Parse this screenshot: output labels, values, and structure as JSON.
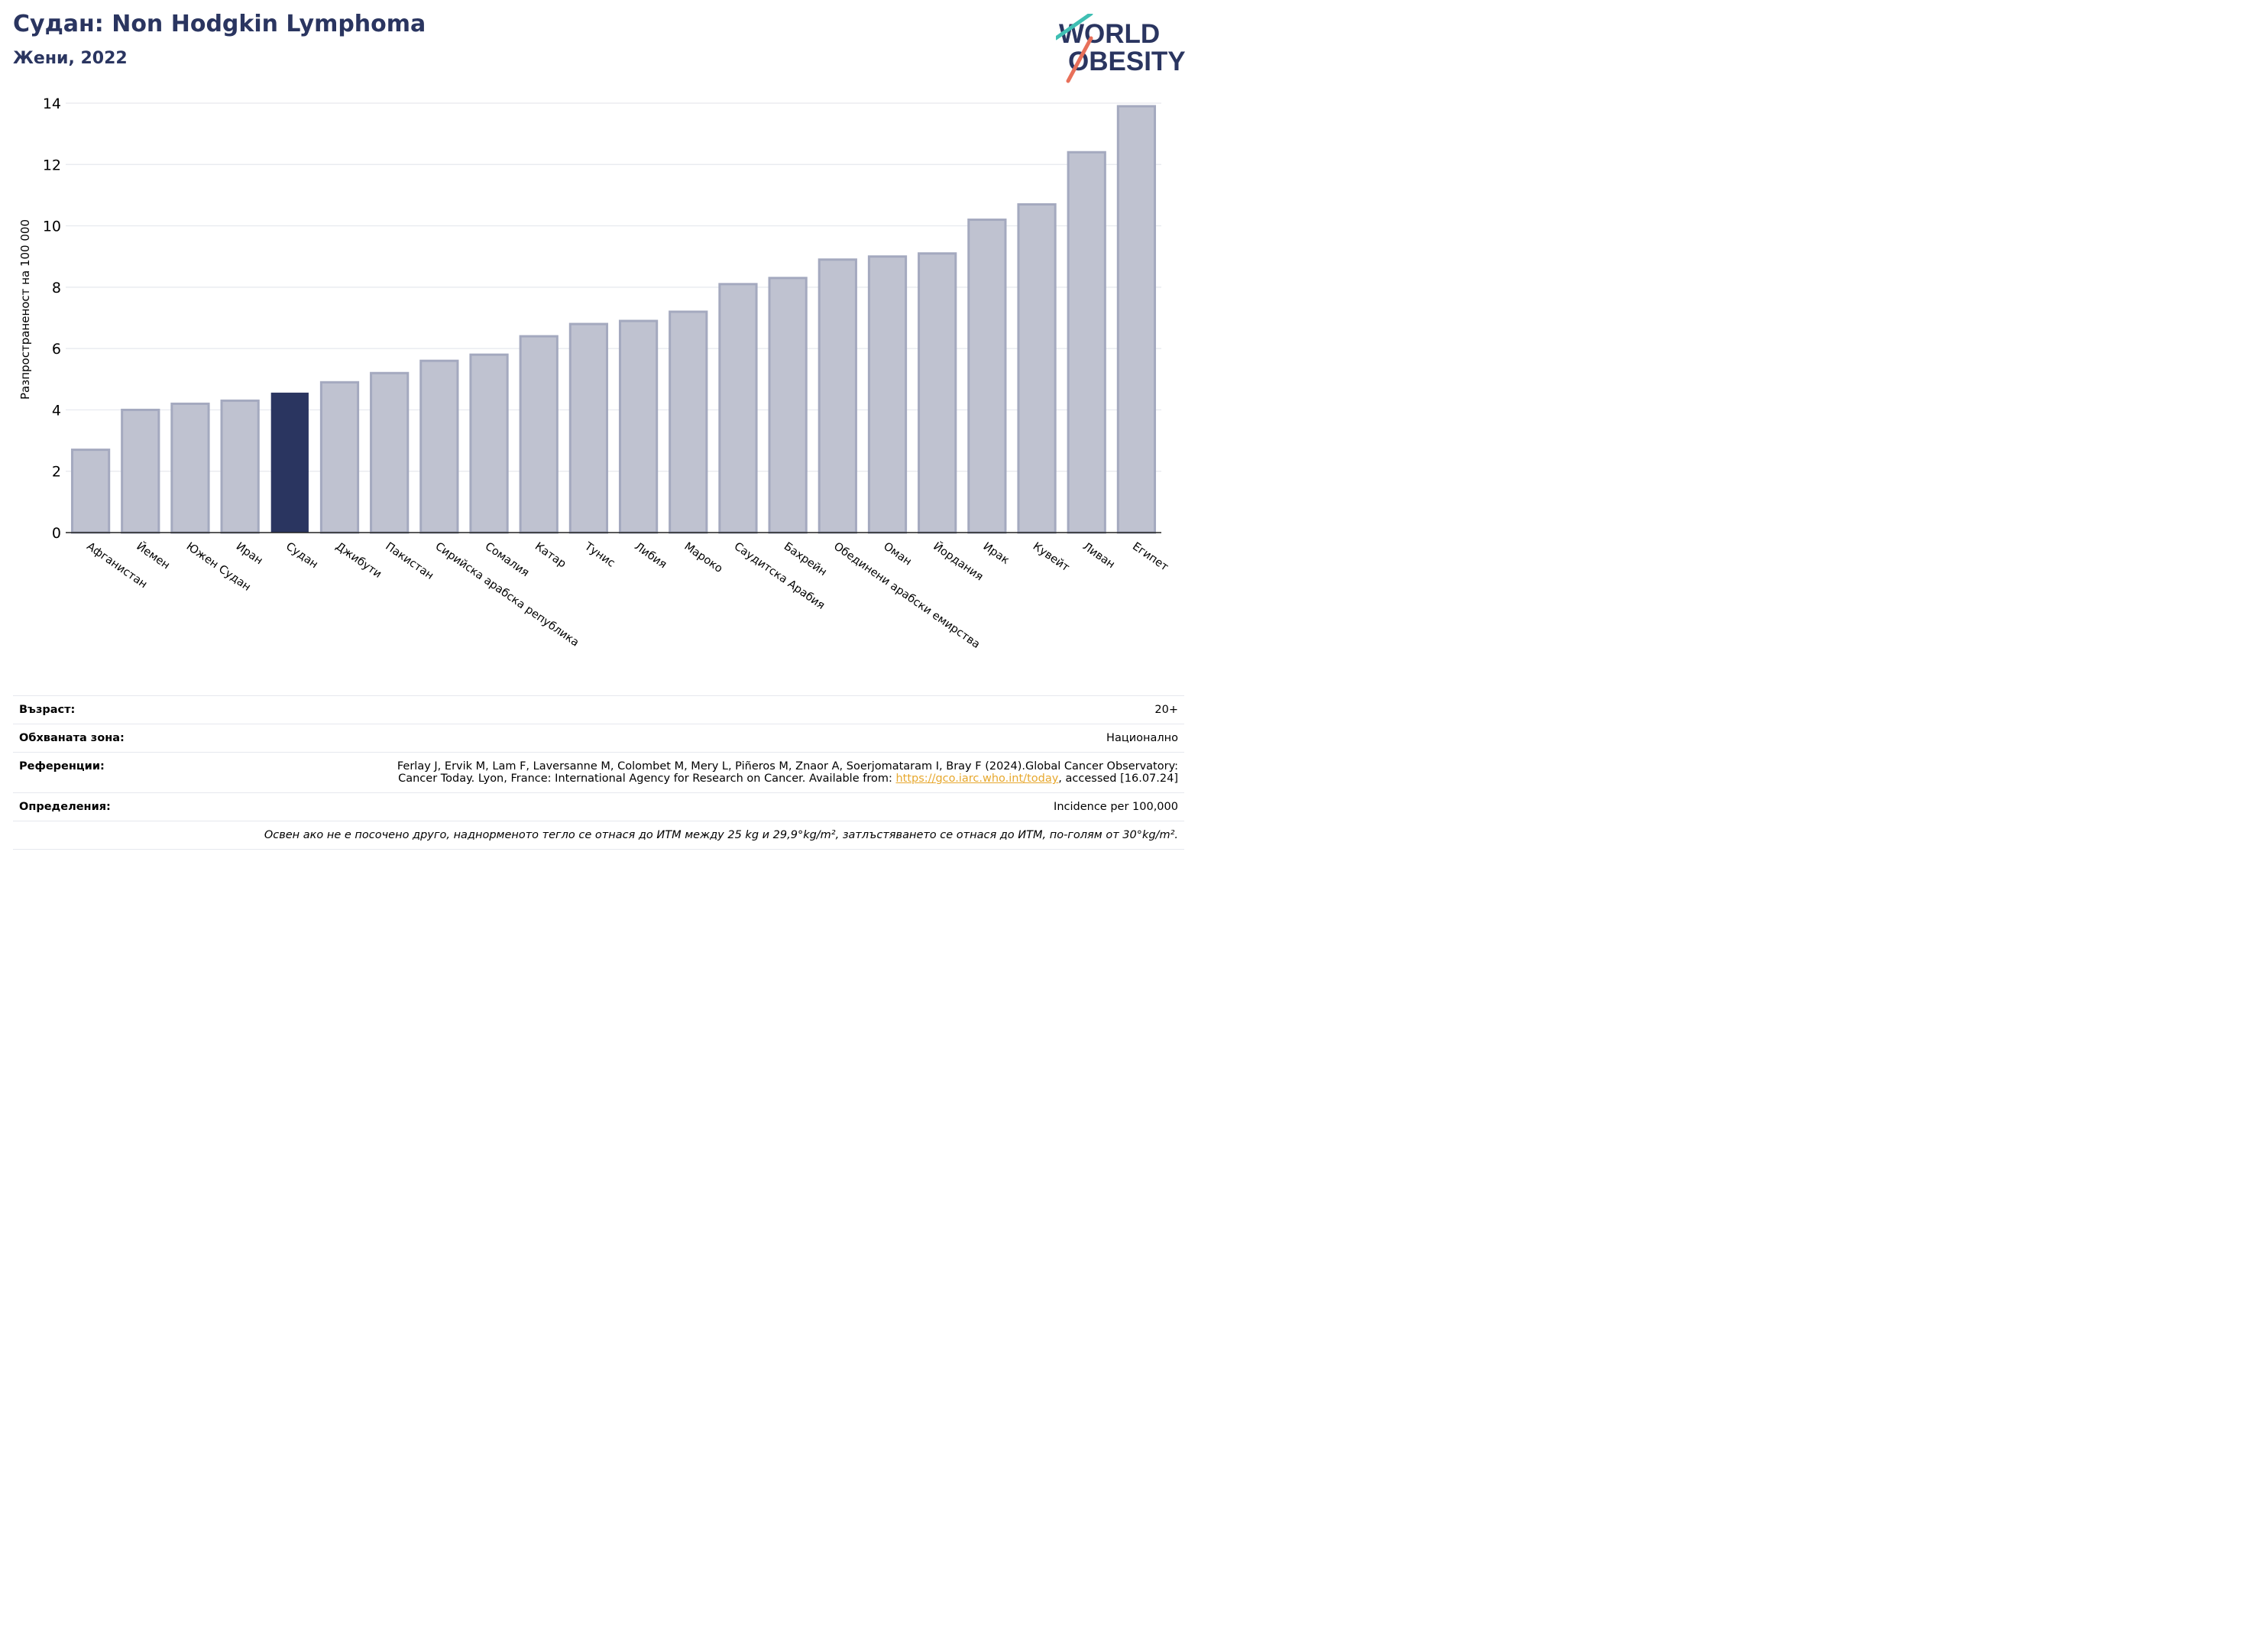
{
  "header": {
    "title": "Судан: Non Hodgkin Lymphoma",
    "subtitle": "Жени, 2022"
  },
  "logo": {
    "line1": "WORLD",
    "line2": "OBESITY"
  },
  "chart_data": {
    "type": "bar",
    "ylabel": "Разпространеност  на 100 000",
    "ylim": [
      0,
      14
    ],
    "yticks": [
      0,
      2,
      4,
      6,
      8,
      10,
      12,
      14
    ],
    "grid": true,
    "highlight": "Судан",
    "colors": {
      "bar": "#bfc2d0",
      "bar_edge": "#a4a9bf",
      "highlight": "#2a3560",
      "grid": "#e6e8ee"
    },
    "categories": [
      "Афганистан",
      "Йемен",
      "Южен Судан",
      "Иран",
      "Судан",
      "Джибути",
      "Пакистан",
      "Сирийска арабска република",
      "Сомалия",
      "Катар",
      "Тунис",
      "Либия",
      "Мароко",
      "Саудитска Арабия",
      "Бахрейн",
      "Обединени арабски емирства",
      "Оман",
      "Йордания",
      "Ирак",
      "Кувейт",
      "Ливан",
      "Египет"
    ],
    "values": [
      2.7,
      4.0,
      4.2,
      4.3,
      4.55,
      4.9,
      5.2,
      5.6,
      5.8,
      6.4,
      6.8,
      6.9,
      7.2,
      8.1,
      8.3,
      8.9,
      9.0,
      9.1,
      10.2,
      10.7,
      12.4,
      13.9
    ]
  },
  "info": {
    "age_label": "Възраст:",
    "age_value": "20+",
    "area_label": "Обхваната зона:",
    "area_value": "Национално",
    "refs_label": "Референции:",
    "refs_line1": "Ferlay J, Ervik M, Lam F, Laversanne M, Colombet M, Mery L, Piñeros M, Znaor A, Soerjomataram I, Bray F (2024).Global Cancer Observatory:",
    "refs_line2_pre": "Cancer Today. Lyon, France: International Agency for Research on Cancer. Available from: ",
    "refs_link": "https://gco.iarc.who.int/today",
    "refs_line2_post": ", accessed [16.07.24]",
    "defs_label": "Определения:",
    "defs_value": "Incidence per 100,000",
    "note": "Освен ако не е посочено друго, наднорменото тегло се отнася до ИТМ между 25 kg и 29,9°kg/m², затлъстяването се отнася до ИТМ, по-голям от 30°kg/m²."
  }
}
